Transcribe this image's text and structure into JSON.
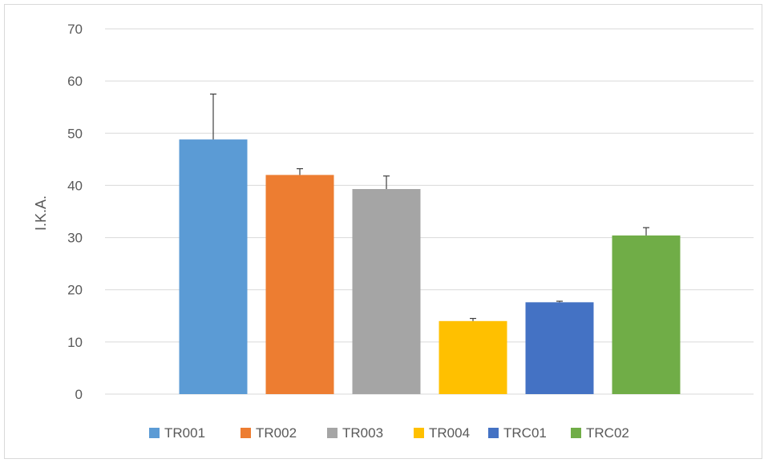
{
  "chart_data": {
    "type": "bar",
    "title": "",
    "xlabel": "",
    "ylabel": "I.K.A.",
    "ylim": [
      0,
      70
    ],
    "yticks": [
      0,
      10,
      20,
      30,
      40,
      50,
      60,
      70
    ],
    "grid": true,
    "legend_position": "bottom",
    "categories": [
      "TR001",
      "TR002",
      "TR003",
      "TR004",
      "TRC01",
      "TRC02"
    ],
    "values": [
      48.8,
      42.0,
      39.3,
      14.0,
      17.6,
      30.4
    ],
    "error_bars": [
      8.7,
      1.2,
      2.5,
      0.5,
      0.2,
      1.5
    ],
    "colors": [
      "#5b9bd5",
      "#ed7d31",
      "#a5a5a5",
      "#ffc000",
      "#4472c4",
      "#70ad47"
    ],
    "gridline_color": "#d9d9d9",
    "text_color": "#595959"
  }
}
